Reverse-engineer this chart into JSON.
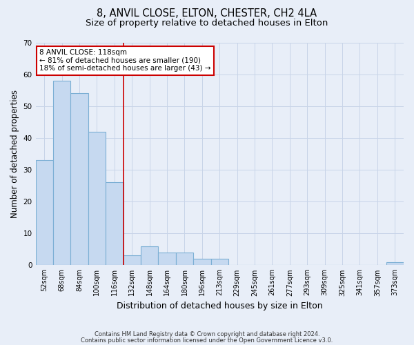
{
  "title": "8, ANVIL CLOSE, ELTON, CHESTER, CH2 4LA",
  "subtitle": "Size of property relative to detached houses in Elton",
  "xlabel": "Distribution of detached houses by size in Elton",
  "ylabel": "Number of detached properties",
  "footnote1": "Contains HM Land Registry data © Crown copyright and database right 2024.",
  "footnote2": "Contains public sector information licensed under the Open Government Licence v3.0.",
  "bar_labels": [
    "52sqm",
    "68sqm",
    "84sqm",
    "100sqm",
    "116sqm",
    "132sqm",
    "148sqm",
    "164sqm",
    "180sqm",
    "196sqm",
    "213sqm",
    "229sqm",
    "245sqm",
    "261sqm",
    "277sqm",
    "293sqm",
    "309sqm",
    "325sqm",
    "341sqm",
    "357sqm",
    "373sqm"
  ],
  "bar_values": [
    33,
    58,
    54,
    42,
    26,
    3,
    6,
    4,
    4,
    2,
    2,
    0,
    0,
    0,
    0,
    0,
    0,
    0,
    0,
    0,
    1
  ],
  "bar_color": "#c6d9f0",
  "bar_edge_color": "#7bafd4",
  "ylim": [
    0,
    70
  ],
  "yticks": [
    0,
    10,
    20,
    30,
    40,
    50,
    60,
    70
  ],
  "red_line_x": 4.5,
  "annotation_line1": "8 ANVIL CLOSE: 118sqm",
  "annotation_line2": "← 81% of detached houses are smaller (190)",
  "annotation_line3": "18% of semi-detached houses are larger (43) →",
  "annotation_box_color": "#ffffff",
  "annotation_box_edge": "#cc0000",
  "red_line_color": "#cc0000",
  "grid_color": "#c8d4e8",
  "bg_color": "#e8eef8",
  "title_fontsize": 10.5,
  "subtitle_fontsize": 9.5,
  "xlabel_fontsize": 9,
  "ylabel_fontsize": 8.5,
  "tick_fontsize": 7,
  "annotation_fontsize": 7.5,
  "footnote_fontsize": 6
}
